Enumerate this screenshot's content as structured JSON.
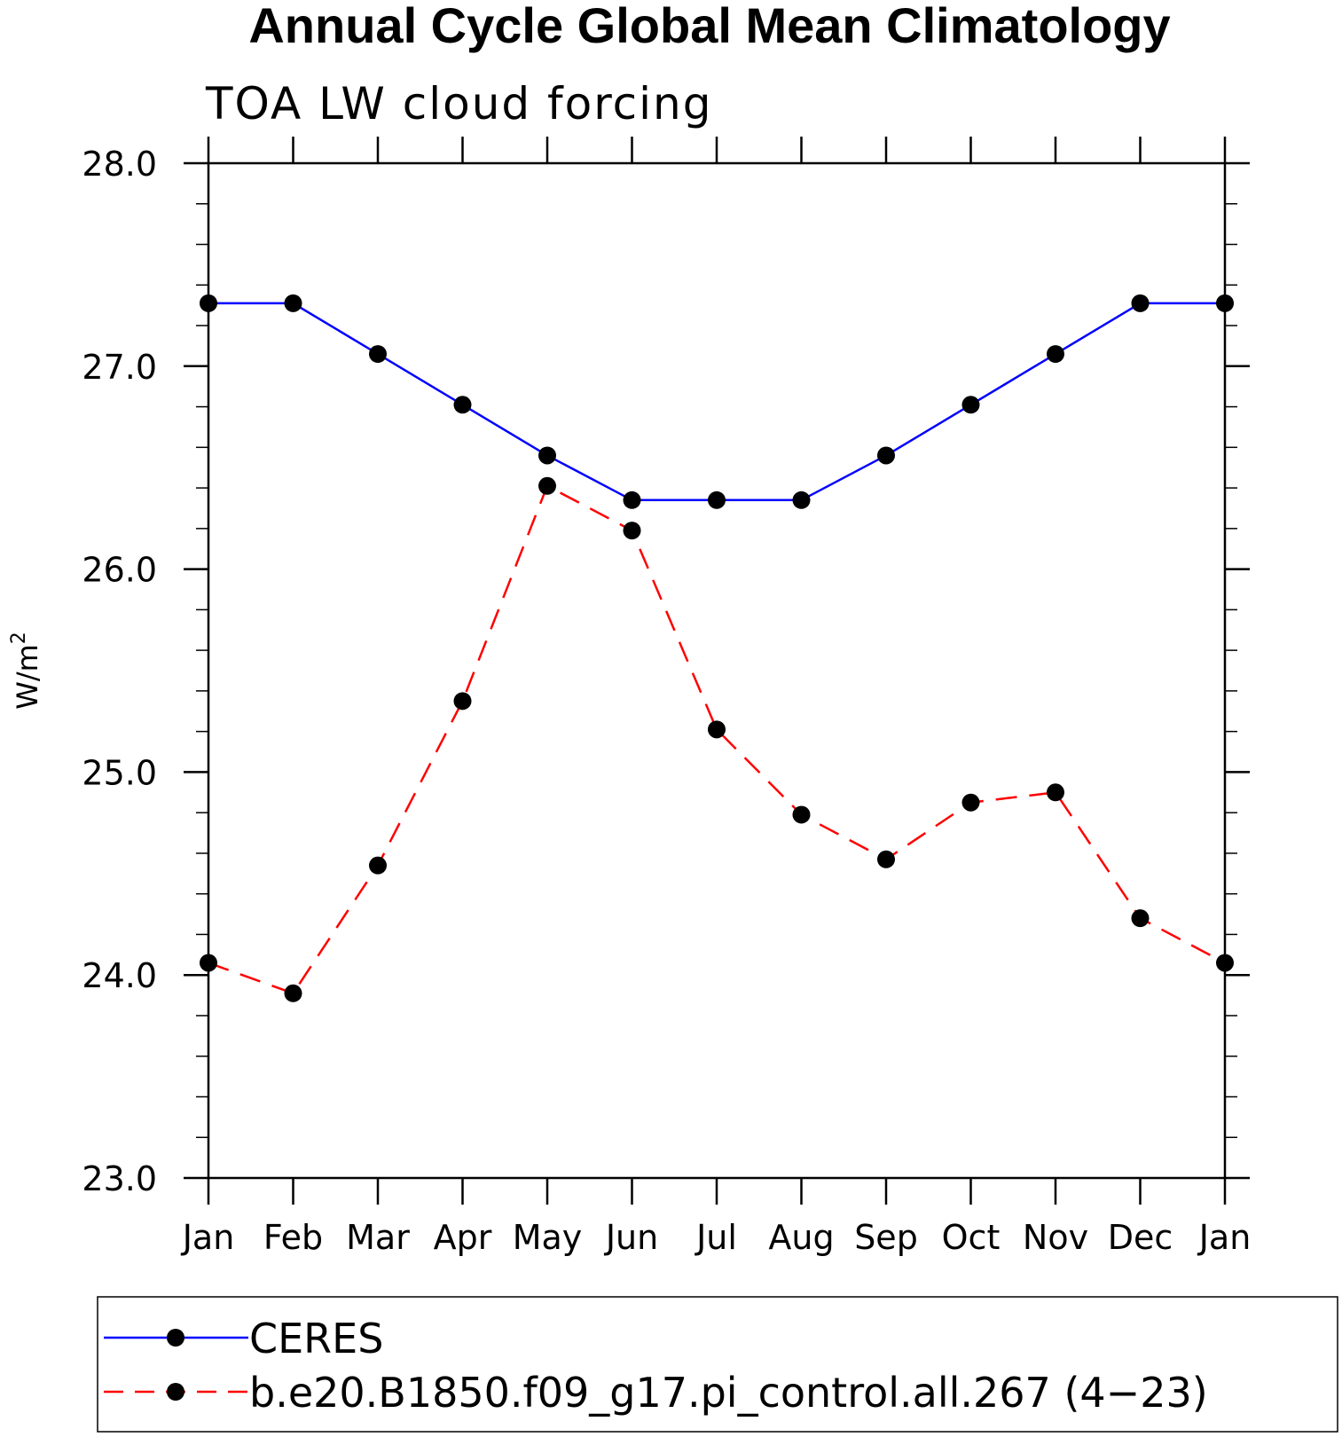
{
  "chart_data": {
    "type": "line",
    "title": "Annual Cycle Global Mean Climatology",
    "subtitle": "TOA LW cloud forcing",
    "ylabel": "W/m",
    "ylabel_sup": "2",
    "xlabel": "",
    "categories": [
      "Jan",
      "Feb",
      "Mar",
      "Apr",
      "May",
      "Jun",
      "Jul",
      "Aug",
      "Sep",
      "Oct",
      "Nov",
      "Dec",
      "Jan"
    ],
    "ylim": [
      23.0,
      28.0
    ],
    "yticks": [
      "23.0",
      "24.0",
      "25.0",
      "26.0",
      "27.0",
      "28.0"
    ],
    "grid": false,
    "legend_position": "bottom",
    "series": [
      {
        "name": "CERES",
        "color": "#0000ff",
        "dash": "solid",
        "marker": "filled-circle",
        "values": [
          27.31,
          27.31,
          27.06,
          26.81,
          26.56,
          26.34,
          26.34,
          26.34,
          26.56,
          26.81,
          27.06,
          27.31,
          27.31
        ]
      },
      {
        "name": "b.e20.B1850.f09_g17.pi_control.all.267 (4−23)",
        "color": "#ff0000",
        "dash": "dashed",
        "marker": "filled-circle",
        "values": [
          24.06,
          23.91,
          24.54,
          25.35,
          26.41,
          26.19,
          25.21,
          24.79,
          24.57,
          24.85,
          24.9,
          24.28,
          24.06
        ]
      }
    ]
  }
}
